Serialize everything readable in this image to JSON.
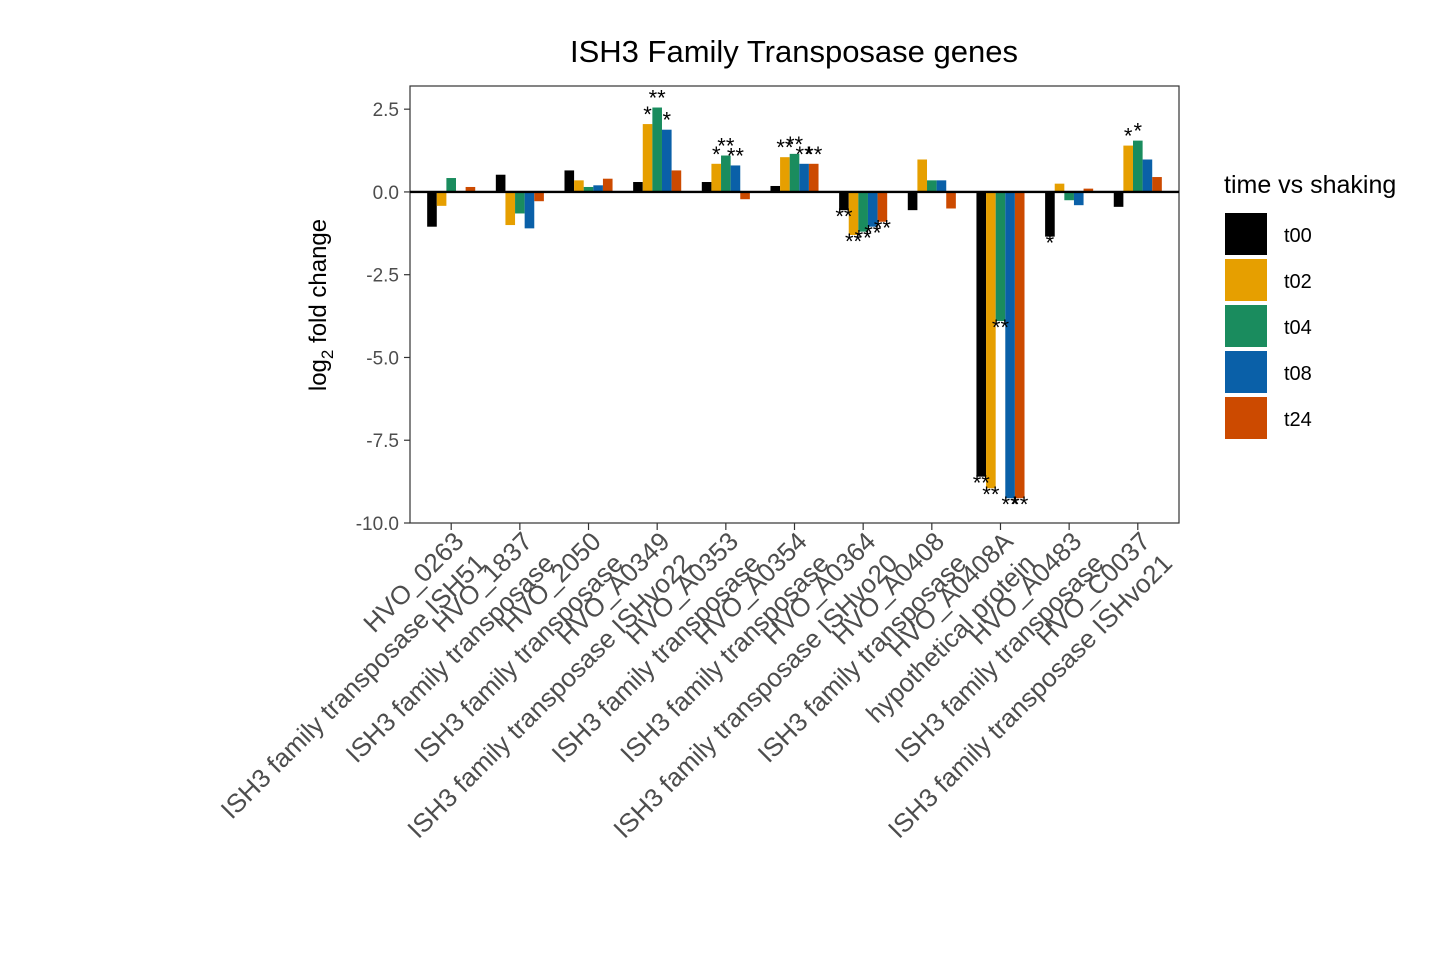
{
  "chart_data": {
    "type": "bar",
    "title": "ISH3 Family Transposase genes",
    "ylabel_main": "log",
    "ylabel_sub": "2",
    "ylabel_rest": " fold change",
    "xlabel": "",
    "ylim": [
      -10,
      3.2
    ],
    "yticks": [
      2.5,
      0.0,
      -2.5,
      -5.0,
      -7.5,
      -10.0
    ],
    "ytick_labels": [
      "2.5",
      "0.0",
      "-2.5",
      "-5.0",
      "-7.5",
      "-10.0"
    ],
    "grid": false,
    "legend_position": "right",
    "legend_title": "time vs shaking",
    "categories": [
      {
        "line1": "HVO_0263",
        "line2": "ISH3 family transposase ISH51"
      },
      {
        "line1": "HVO_1837",
        "line2": "ISH3 family transposase"
      },
      {
        "line1": "HVO_2050",
        "line2": "ISH3 family transposase"
      },
      {
        "line1": "HVO_A0349",
        "line2": "ISH3 family transposase ISHvo22"
      },
      {
        "line1": "HVO_A0353",
        "line2": "ISH3 family transposase"
      },
      {
        "line1": "HVO_A0354",
        "line2": "ISH3 family transposase"
      },
      {
        "line1": "HVO_A0364",
        "line2": "ISH3 family transposase ISHvo20"
      },
      {
        "line1": "HVO_A0408",
        "line2": "ISH3 family transposase"
      },
      {
        "line1": "HVO_A0408A",
        "line2": "hypothetical protein"
      },
      {
        "line1": "HVO_A0483",
        "line2": "ISH3 family transposase"
      },
      {
        "line1": "HVO_C0037",
        "line2": "ISH3 family transposase ISHvo21"
      }
    ],
    "series": [
      {
        "name": "t00",
        "color": "#000000",
        "values": [
          -1.05,
          0.52,
          0.65,
          0.3,
          0.3,
          0.18,
          -0.55,
          -0.55,
          -8.6,
          -1.35,
          -0.45
        ],
        "sig": [
          "",
          "",
          "",
          "",
          "",
          "",
          "**",
          "",
          "**",
          "*",
          ""
        ]
      },
      {
        "name": "t02",
        "color": "#E69F00",
        "values": [
          -0.42,
          -1.0,
          0.35,
          2.05,
          0.85,
          1.05,
          -1.3,
          0.98,
          -8.95,
          0.25,
          1.4
        ],
        "sig": [
          "",
          "",
          "",
          "*",
          "*",
          "**",
          "**",
          "",
          "**",
          "",
          "*"
        ]
      },
      {
        "name": "t04",
        "color": "#1A8C5E",
        "values": [
          0.42,
          -0.65,
          0.15,
          2.55,
          1.1,
          1.15,
          -1.2,
          0.35,
          -3.9,
          -0.25,
          1.55
        ],
        "sig": [
          "",
          "",
          "",
          "**",
          "**",
          "**",
          "**",
          "",
          "**",
          "",
          "*"
        ]
      },
      {
        "name": "t08",
        "color": "#0A60A8",
        "values": [
          0.0,
          -1.1,
          0.2,
          1.88,
          0.8,
          0.85,
          -1.05,
          0.35,
          -9.25,
          -0.4,
          0.98
        ],
        "sig": [
          "",
          "",
          "",
          "*",
          "**",
          "**",
          "**",
          "",
          "**",
          "",
          ""
        ]
      },
      {
        "name": "t24",
        "color": "#CC4A00",
        "values": [
          0.15,
          -0.28,
          0.4,
          0.65,
          -0.22,
          0.85,
          -0.9,
          -0.5,
          -9.25,
          0.1,
          0.45
        ],
        "sig": [
          "",
          "",
          "",
          "",
          "",
          "**",
          "**",
          "",
          "**",
          "",
          ""
        ]
      }
    ]
  }
}
